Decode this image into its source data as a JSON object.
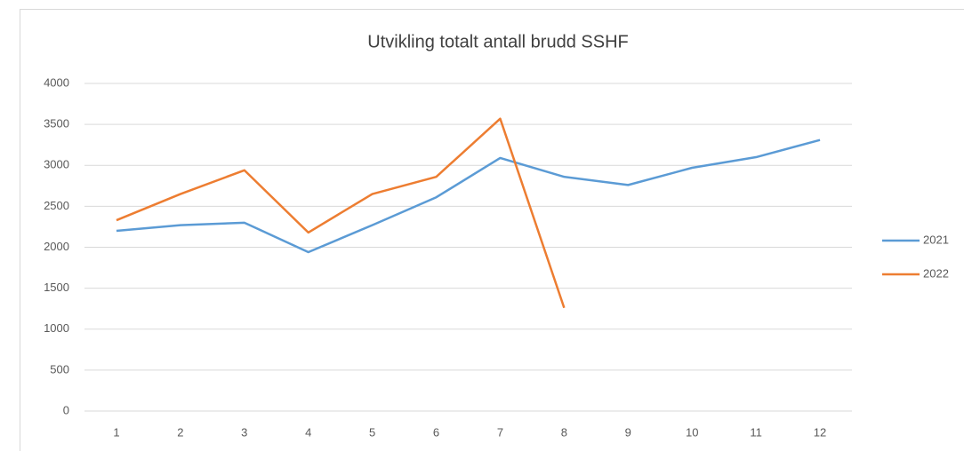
{
  "chart_data": {
    "type": "line",
    "title": "Utvikling totalt antall brudd SSHF",
    "categories": [
      1,
      2,
      3,
      4,
      5,
      6,
      7,
      8,
      9,
      10,
      11,
      12
    ],
    "series": [
      {
        "name": "2021",
        "color": "#5b9bd5",
        "values": [
          2200,
          2270,
          2300,
          1940,
          2270,
          2610,
          3090,
          2860,
          2760,
          2970,
          3100,
          3310
        ]
      },
      {
        "name": "2022",
        "color": "#ed7d31",
        "values": [
          2330,
          2650,
          2940,
          2180,
          2650,
          2860,
          3570,
          1260,
          null,
          null,
          null,
          null
        ]
      }
    ],
    "ylim": [
      0,
      4000
    ],
    "yticks": [
      0,
      500,
      1000,
      1500,
      2000,
      2500,
      3000,
      3500,
      4000
    ],
    "grid": true,
    "legend": "right"
  }
}
